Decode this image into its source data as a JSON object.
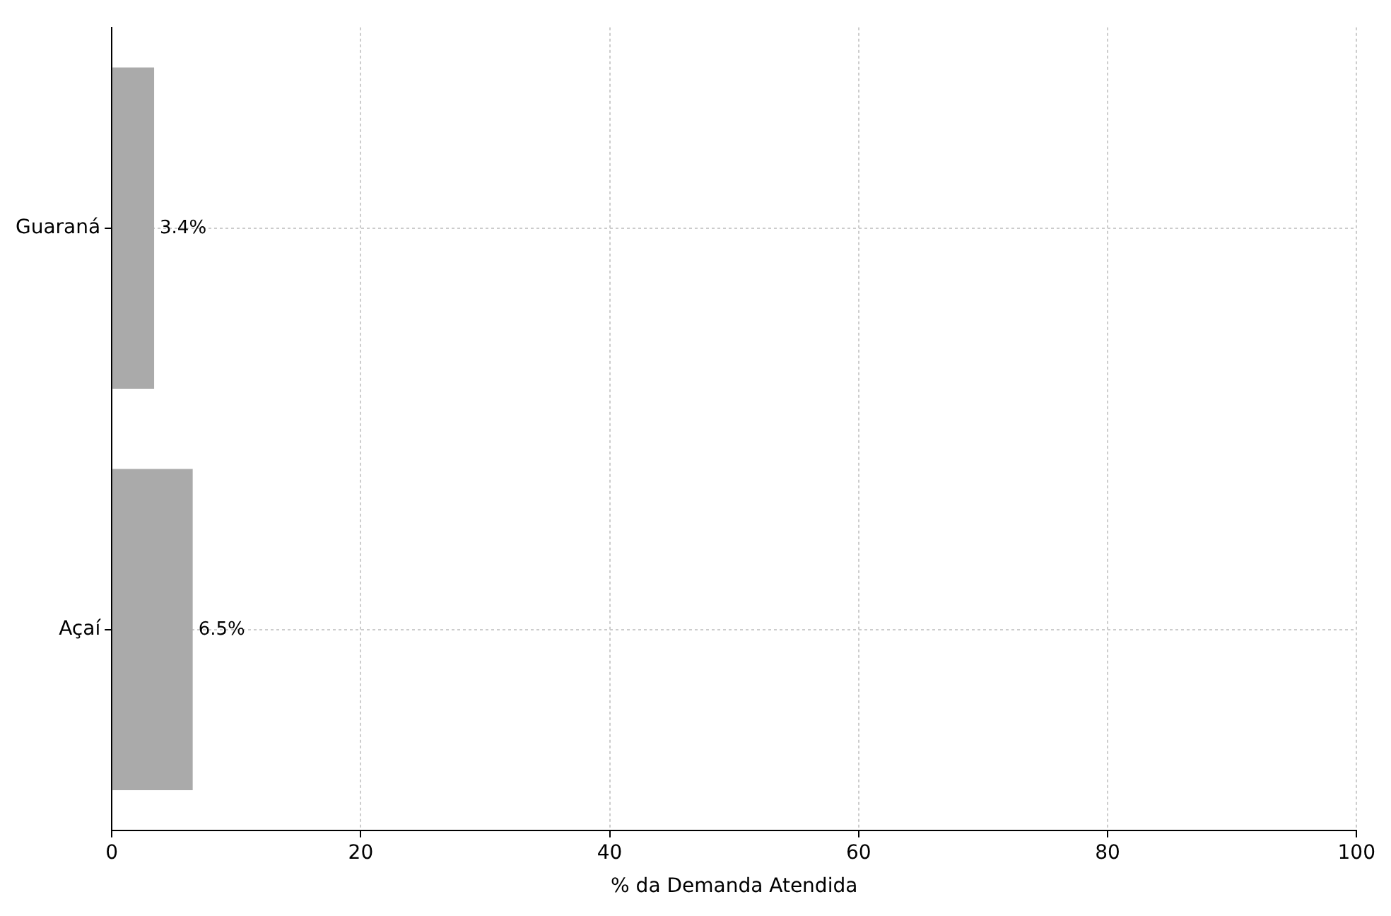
{
  "chart_data": {
    "type": "bar",
    "orientation": "horizontal",
    "categories": [
      "Guaraná",
      "Açaí"
    ],
    "values": [
      3.4,
      6.5
    ],
    "color": "#aaaaaa",
    "value_labels": [
      "3.4%",
      "6.5%"
    ],
    "xlabel": "% da Demanda Atendida",
    "xlim": [
      0,
      100
    ],
    "xticks": [
      0,
      20,
      40,
      60,
      80,
      100
    ],
    "grid": true
  }
}
